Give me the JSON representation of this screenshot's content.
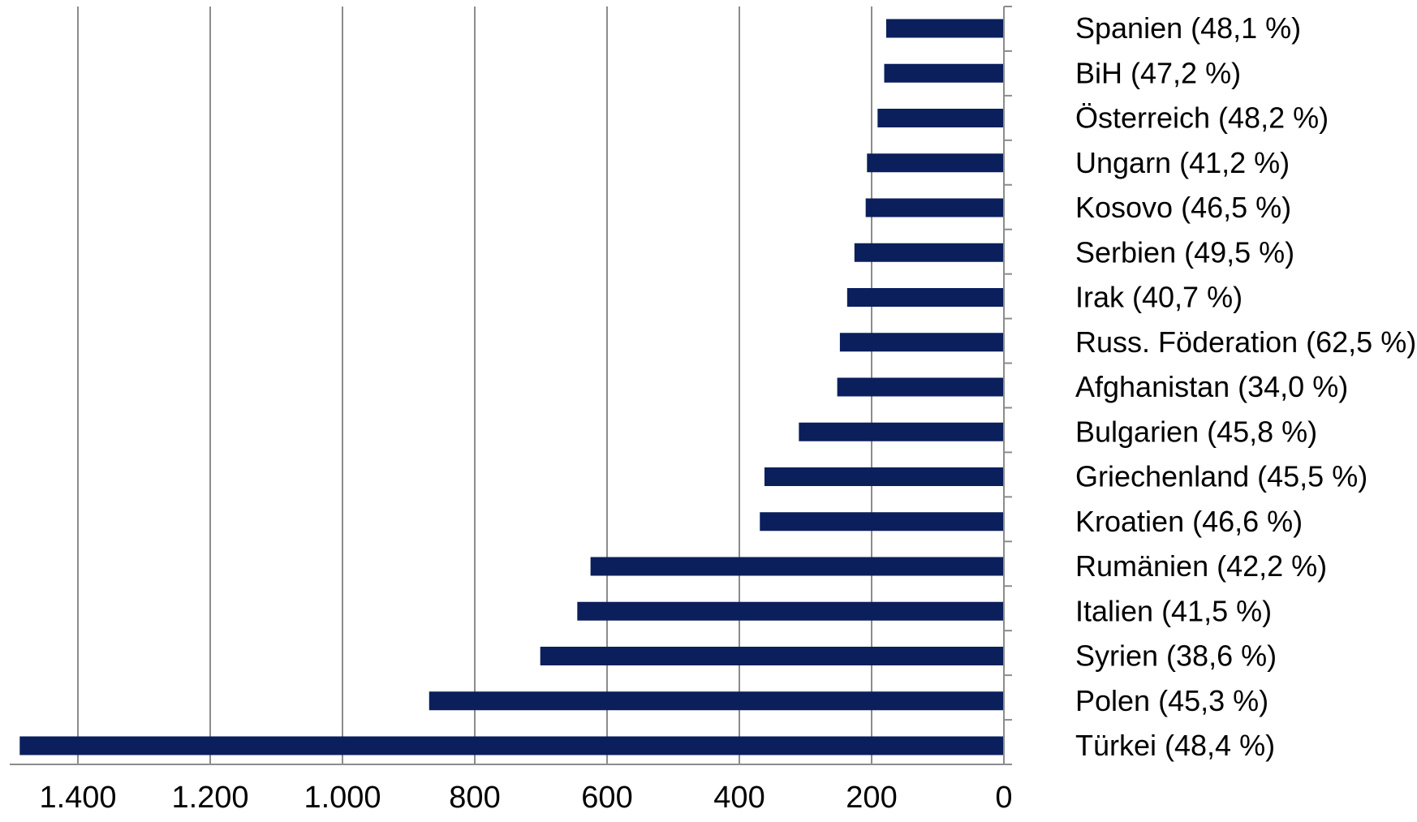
{
  "chart_data": {
    "type": "bar",
    "orientation": "horizontal",
    "x_axis_reversed": true,
    "categories": [
      "Spanien (48,1 %)",
      "BiH (47,2 %)",
      "Österreich (48,2 %)",
      "Ungarn (41,2 %)",
      "Kosovo (46,5 %)",
      "Serbien (49,5 %)",
      "Irak (40,7 %)",
      "Russ. Föderation (62,5 %)",
      "Afghanistan (34,0 %)",
      "Bulgarien (45,8 %)",
      "Griechenland (45,5 %)",
      "Kroatien (46,6 %)",
      "Rumänien (42,2 %)",
      "Italien (41,5 %)",
      "Syrien (38,6 %)",
      "Polen (45,3 %)",
      "Türkei (48,4 %)"
    ],
    "values": [
      178,
      181,
      191,
      207,
      209,
      226,
      237,
      248,
      252,
      310,
      362,
      369,
      625,
      645,
      701,
      869,
      1488
    ],
    "xlim": [
      0,
      1500
    ],
    "ticks": [
      1400,
      1200,
      1000,
      800,
      600,
      400,
      200,
      0
    ],
    "tick_labels": [
      "1.400",
      "1.200",
      "1.000",
      "800",
      "600",
      "400",
      "200",
      "0"
    ],
    "grid": "vertical",
    "bar_color": "#0B1F5C",
    "grid_color": "#8C8C8C"
  }
}
